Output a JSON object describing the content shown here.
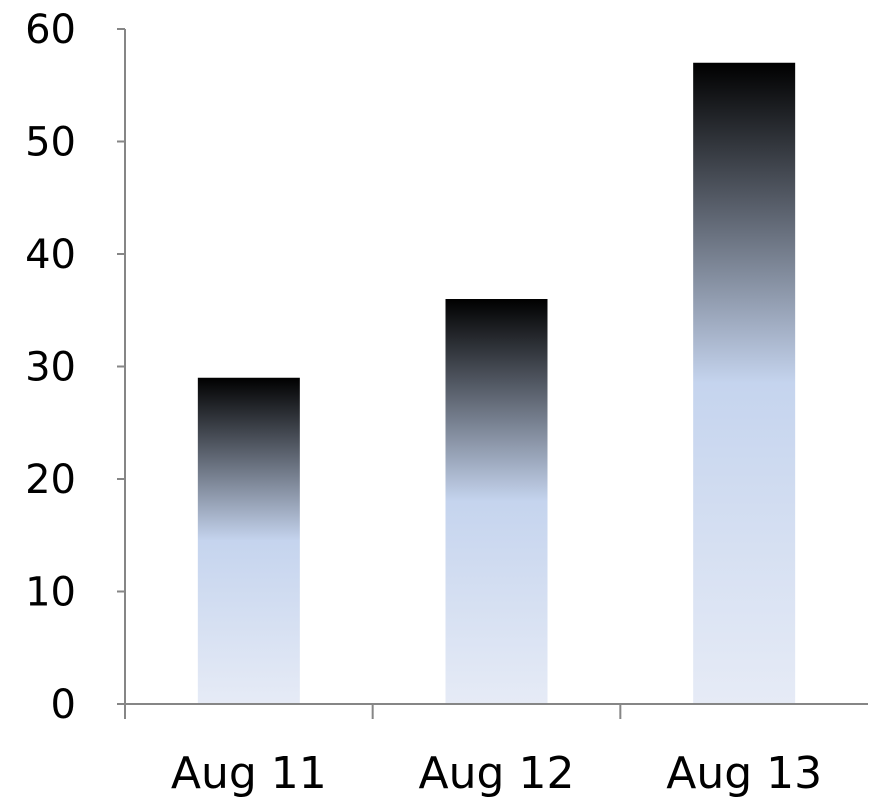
{
  "chart_data": {
    "type": "bar",
    "categories": [
      "Aug 11",
      "Aug 12",
      "Aug 13"
    ],
    "values": [
      29,
      36,
      57
    ],
    "ylim": [
      0,
      60
    ],
    "yticks": [
      "0",
      "10",
      "20",
      "30",
      "40",
      "50",
      "60"
    ],
    "grid": false,
    "legend": "none",
    "colors": {
      "bar_top": "#000000",
      "bar_mid": "#c5d4ee",
      "bar_bottom": "#e6ebf6",
      "axis": "#868686",
      "text": "#000000"
    }
  }
}
